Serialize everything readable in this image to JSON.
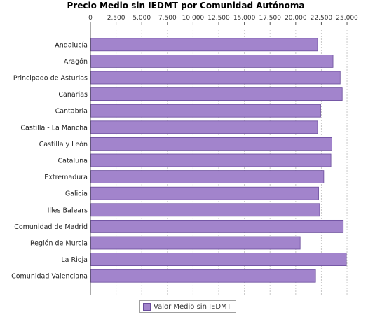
{
  "chart_data": {
    "type": "bar",
    "orientation": "horizontal",
    "title": "Precio Medio sin IEDMT por Comunidad Autónoma",
    "categories": [
      "Andalucía",
      "Aragón",
      "Principado de Asturias",
      "Canarias",
      "Cantabria",
      "Castilla - La Mancha",
      "Castilla y León",
      "Cataluña",
      "Extremadura",
      "Galicia",
      "Illes Balears",
      "Comunidad de Madrid",
      "Región de Murcia",
      "La Rioja",
      "Comunidad Valenciana"
    ],
    "series": [
      {
        "name": "Valor Medio sin IEDMT",
        "values": [
          22100,
          23600,
          24300,
          24500,
          22400,
          22100,
          23500,
          23400,
          22700,
          22200,
          22300,
          24600,
          20400,
          24900,
          21900
        ]
      }
    ],
    "x_ticks": [
      "0",
      "2.500",
      "5.000",
      "7.500",
      "10.000",
      "12.500",
      "15.000",
      "17.500",
      "20.000",
      "22.500",
      "25.000"
    ],
    "xlim": [
      0,
      26500
    ],
    "grid": true,
    "legend_position": "bottom",
    "colors": {
      "bar_fill": "#a284cc",
      "bar_stroke": "#6a4c9c",
      "grid": "#c8c8c8"
    }
  }
}
